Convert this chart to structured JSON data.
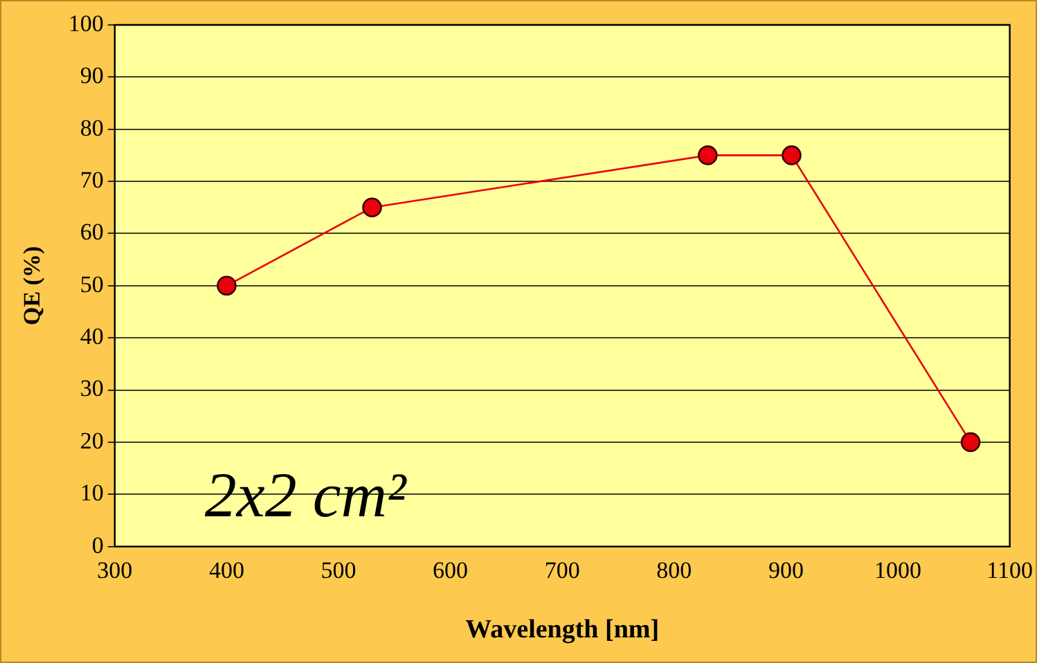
{
  "chart_data": {
    "type": "line",
    "xlabel": "Wavelength [nm]",
    "ylabel": "QE (%)",
    "annotations": [
      "2x2 cm²"
    ],
    "series": [
      {
        "color": "#e8000b",
        "x": [
          400,
          530,
          830,
          905,
          1065
        ],
        "values": [
          50,
          65,
          75,
          75,
          20
        ]
      }
    ],
    "xlim": [
      300,
      1100
    ],
    "xticks": [
      300,
      400,
      500,
      600,
      700,
      800,
      900,
      1000,
      1100
    ],
    "ylim": [
      0,
      100
    ],
    "yticks": [
      0,
      10,
      20,
      30,
      40,
      50,
      60,
      70,
      80,
      90,
      100
    ],
    "grid": "y",
    "marker": "circle",
    "line_style": "solid",
    "legend": false
  }
}
